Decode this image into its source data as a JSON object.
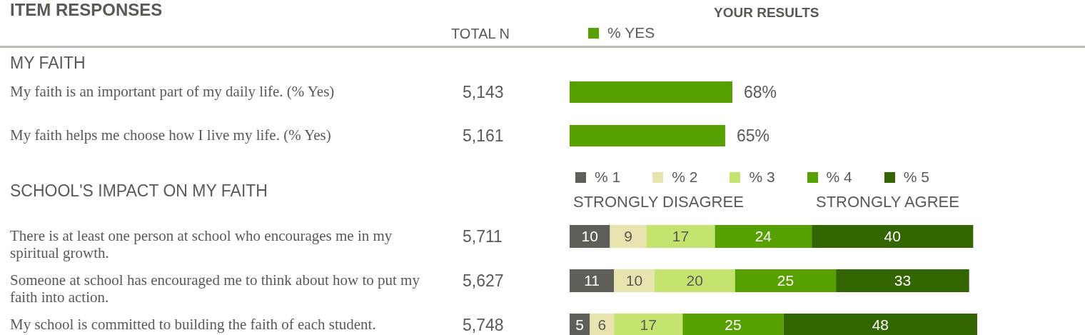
{
  "chart_data": [
    {
      "type": "bar",
      "orientation": "horizontal",
      "title": "ITEM RESPONSES",
      "subtitle": "MY FAITH",
      "legend_title": "YOUR RESULTS",
      "legend": "top",
      "categories": [
        "My faith is an important part of my daily life. (% Yes)",
        "My faith helps me choose how I live my life. (% Yes)"
      ],
      "series": [
        {
          "name": "% YES",
          "color": "#56a000",
          "values": [
            68,
            65
          ],
          "value_labels": [
            "68%",
            "65%"
          ]
        }
      ],
      "tick_labels": "y",
      "annotations": [
        "TOTAL N",
        "5,143",
        "5,161"
      ]
    },
    {
      "type": "bar",
      "orientation": "horizontal",
      "stacked": true,
      "title": "SCHOOL'S IMPACT ON MY FAITH",
      "legend": "top",
      "data_labels": true,
      "categories": [
        "There is at least one person at school who encourages me in my spiritual growth.",
        "Someone at school has encouraged me to think about how to put my faith into action.",
        "My school is committed to building the faith of each student."
      ],
      "series": [
        {
          "name": "% 1",
          "color": "#5f5f5a",
          "values": [
            10,
            11,
            5
          ]
        },
        {
          "name": "% 2",
          "color": "#e8e4b0",
          "values": [
            9,
            10,
            6
          ]
        },
        {
          "name": "% 3",
          "color": "#c5e46f",
          "values": [
            17,
            20,
            17
          ]
        },
        {
          "name": "% 4",
          "color": "#56a000",
          "values": [
            24,
            25,
            25
          ]
        },
        {
          "name": "% 5",
          "color": "#336600",
          "values": [
            40,
            33,
            48
          ]
        }
      ],
      "tick_labels": "y",
      "annotations": [
        "STRONGLY DISAGREE",
        "STRONGLY AGREE",
        "5,711",
        "5,627",
        "5,748"
      ]
    }
  ]
}
